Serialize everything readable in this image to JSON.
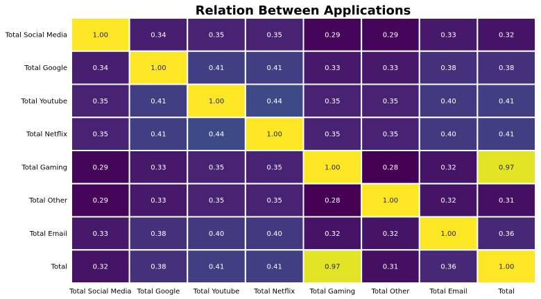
{
  "chart_data": {
    "type": "heatmap",
    "title": "Relation Between Applications",
    "x_categories": [
      "Total Social Media",
      "Total Google",
      "Total Youtube",
      "Total Netflix",
      "Total Gaming",
      "Total Other",
      "Total Email",
      "Total"
    ],
    "y_categories": [
      "Total Social Media",
      "Total Google",
      "Total Youtube",
      "Total Netflix",
      "Total Gaming",
      "Total Other",
      "Total Email",
      "Total"
    ],
    "values": [
      [
        1.0,
        0.34,
        0.35,
        0.35,
        0.29,
        0.29,
        0.33,
        0.32
      ],
      [
        0.34,
        1.0,
        0.41,
        0.41,
        0.33,
        0.33,
        0.38,
        0.38
      ],
      [
        0.35,
        0.41,
        1.0,
        0.44,
        0.35,
        0.35,
        0.4,
        0.41
      ],
      [
        0.35,
        0.41,
        0.44,
        1.0,
        0.35,
        0.35,
        0.4,
        0.41
      ],
      [
        0.29,
        0.33,
        0.35,
        0.35,
        1.0,
        0.28,
        0.32,
        0.97
      ],
      [
        0.29,
        0.33,
        0.35,
        0.35,
        0.28,
        1.0,
        0.32,
        0.31
      ],
      [
        0.33,
        0.38,
        0.4,
        0.4,
        0.32,
        0.32,
        1.0,
        0.36
      ],
      [
        0.32,
        0.38,
        0.41,
        0.41,
        0.97,
        0.31,
        0.36,
        1.0
      ]
    ],
    "value_format": "0.00",
    "colormap": "viridis",
    "color_range": [
      0.28,
      1.0
    ],
    "colorbar": false,
    "grid": false,
    "cell_border_color": "#ffffff"
  }
}
